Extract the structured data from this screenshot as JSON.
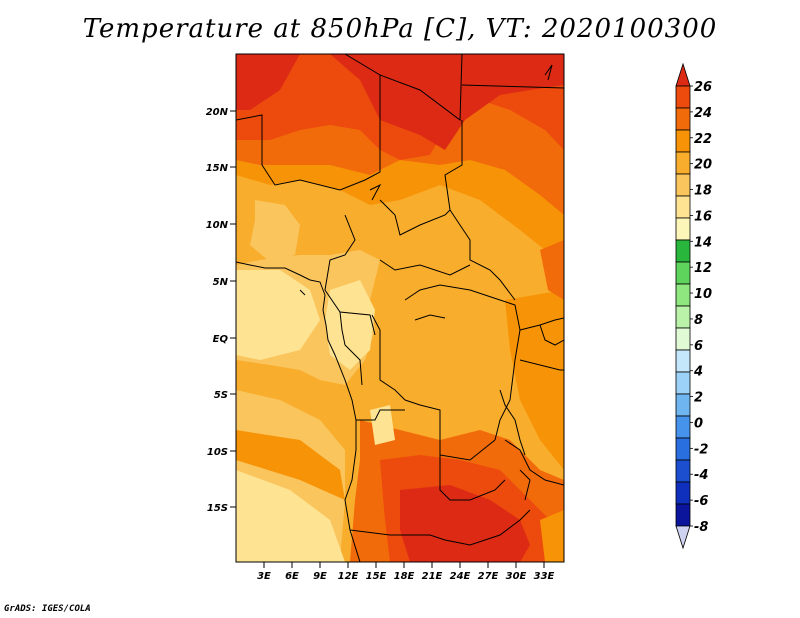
{
  "title": "Temperature at 850hPa [C], VT: 2020100300",
  "credit": "GrADS: IGES/COLA",
  "map": {
    "lat_labels": [
      "20N",
      "15N",
      "10N",
      "5N",
      "EQ",
      "5S",
      "10S",
      "15S"
    ],
    "lon_labels": [
      "3E",
      "6E",
      "9E",
      "12E",
      "15E",
      "18E",
      "21E",
      "24E",
      "27E",
      "30E",
      "33E"
    ]
  },
  "colorbar": {
    "labels": [
      "26",
      "24",
      "22",
      "20",
      "18",
      "16",
      "14",
      "12",
      "10",
      "8",
      "6",
      "4",
      "2",
      "0",
      "-2",
      "-4",
      "-6",
      "-8"
    ],
    "colors": [
      "#dd2a14",
      "#ed4a0e",
      "#f26b0a",
      "#f79306",
      "#f9ad2d",
      "#fbc55e",
      "#fde392",
      "#fcf6b9",
      "#28b63c",
      "#5fd45d",
      "#8ee77f",
      "#b9f2a8",
      "#e0fad6",
      "#c4e7fb",
      "#9cd2f7",
      "#6fb6f1",
      "#4693eb",
      "#2a6fe0",
      "#1c4fcf",
      "#0f2fbd",
      "#0a159b",
      "#cfd3f2"
    ]
  }
}
